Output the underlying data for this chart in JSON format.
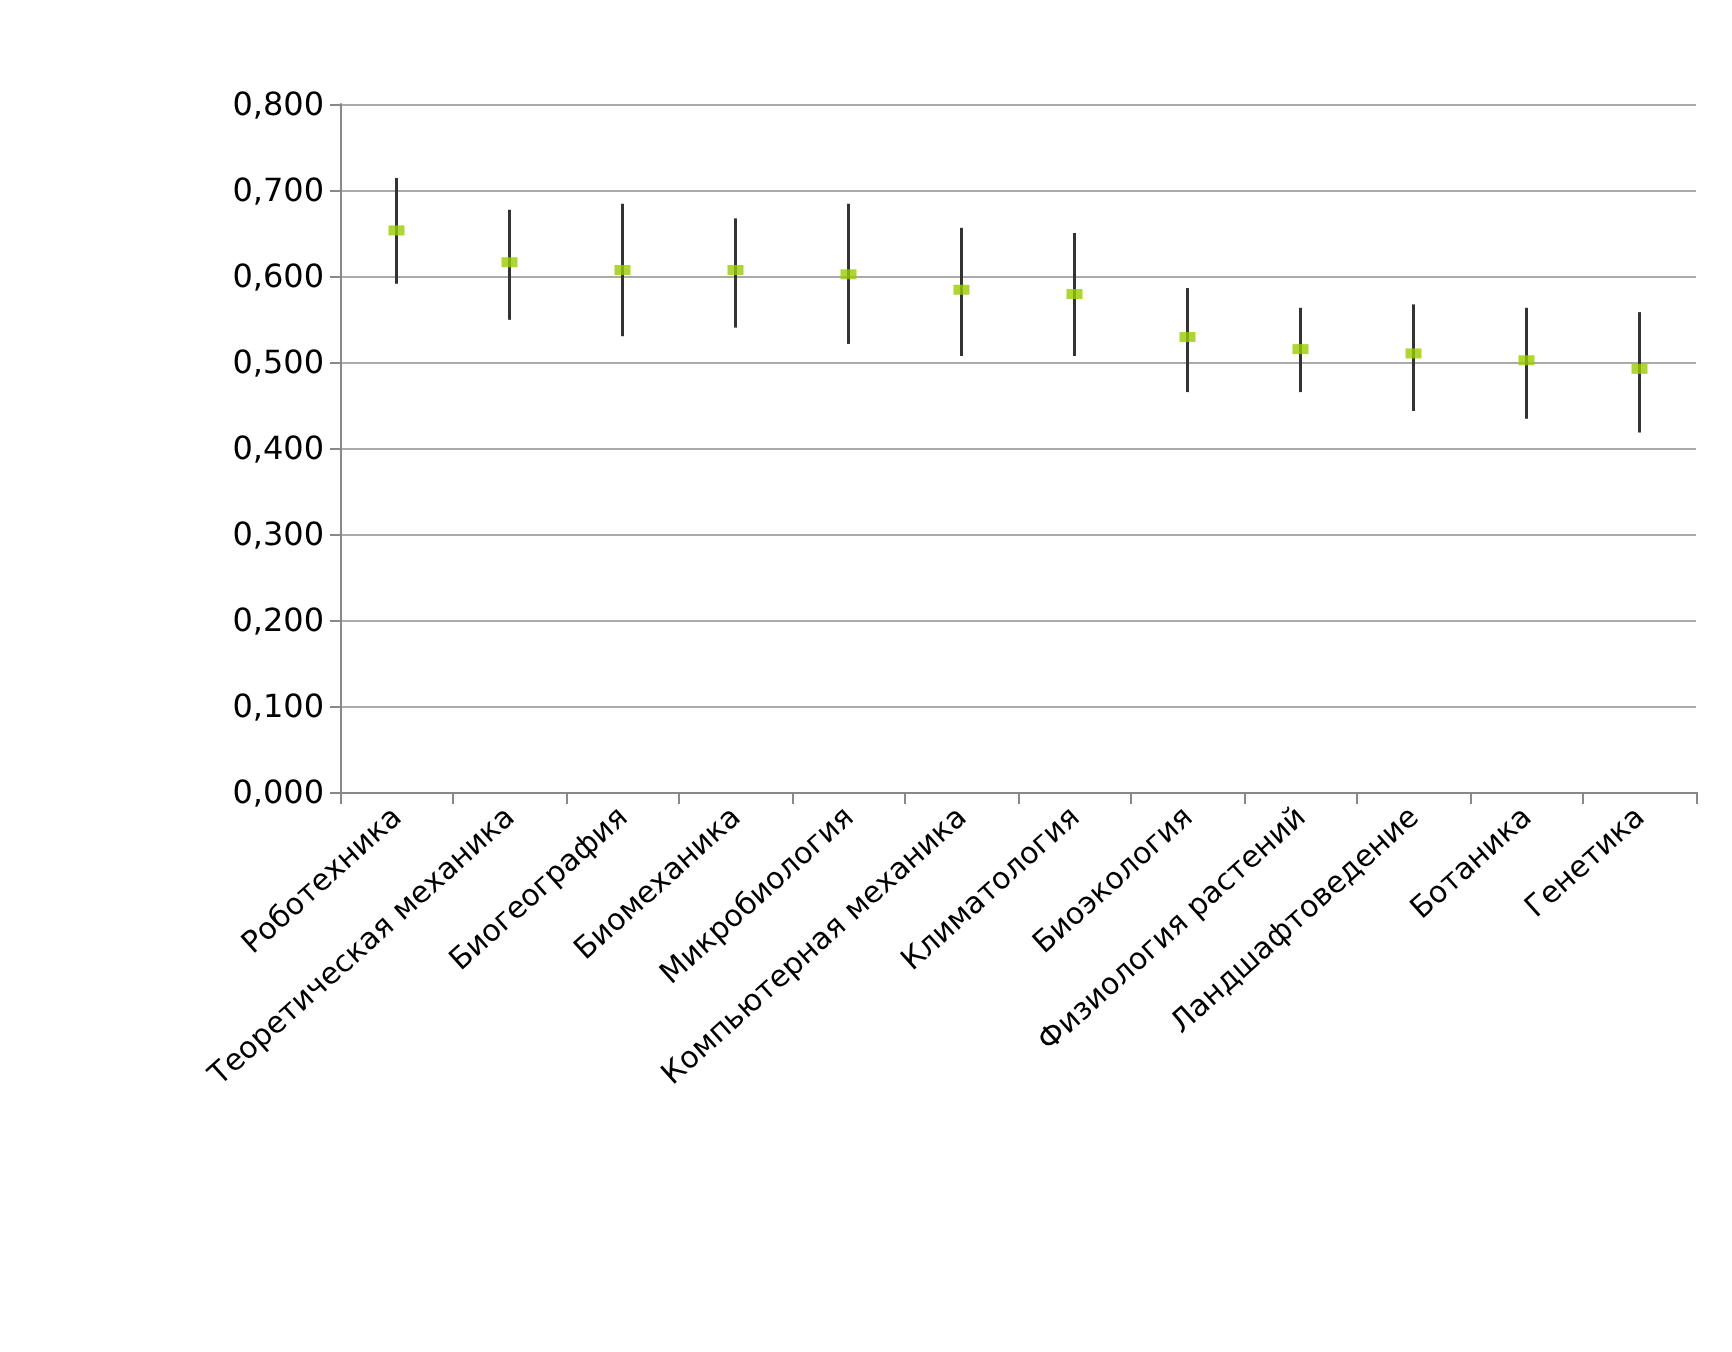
{
  "chart_data": {
    "type": "scatter",
    "categories": [
      "Роботехника",
      "Теоретическая механика",
      "Биогеография",
      "Биомеханика",
      "Микробиология",
      "Компьютерная механика",
      "Климатология",
      "Биоэкология",
      "Физиология растений",
      "Ландшафтоведение",
      "Ботаника",
      "Генетика"
    ],
    "series": [
      {
        "color": "#99cc00",
        "values": [
          0.653,
          0.616,
          0.607,
          0.607,
          0.602,
          0.584,
          0.579,
          0.529,
          0.515,
          0.51,
          0.502,
          0.492
        ],
        "errors": [
          [
            0.591,
            0.714
          ],
          [
            0.549,
            0.677
          ],
          [
            0.53,
            0.684
          ],
          [
            0.54,
            0.667
          ],
          [
            0.521,
            0.684
          ],
          [
            0.507,
            0.656
          ],
          [
            0.507,
            0.65
          ],
          [
            0.465,
            0.586
          ],
          [
            0.465,
            0.563
          ],
          [
            0.443,
            0.567
          ],
          [
            0.434,
            0.563
          ],
          [
            0.418,
            0.558
          ]
        ]
      }
    ],
    "ylim": [
      0,
      0.8
    ],
    "yticks": [
      {
        "value": 0,
        "label": "0,000"
      },
      {
        "value": 0.1,
        "label": "0,100"
      },
      {
        "value": 0.2,
        "label": "0,200"
      },
      {
        "value": 0.3,
        "label": "0,300"
      },
      {
        "value": 0.4,
        "label": "0,400"
      },
      {
        "value": 0.5,
        "label": "0,500"
      },
      {
        "value": 0.6,
        "label": "0,600"
      },
      {
        "value": 0.7,
        "label": "0,700"
      },
      {
        "value": 0.8,
        "label": "0,800"
      }
    ],
    "grid": "y",
    "marker": "square"
  }
}
